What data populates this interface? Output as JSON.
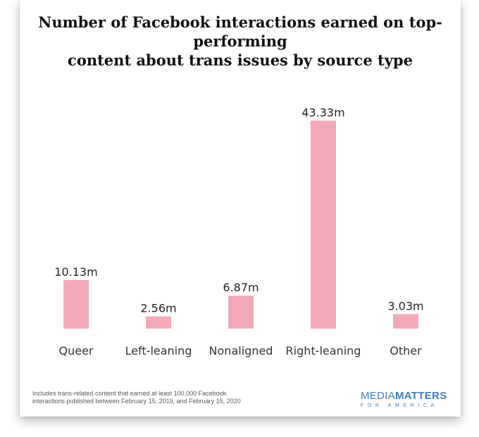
{
  "chart_data": {
    "type": "bar",
    "title_lines": [
      "Number of Facebook interactions earned on top-performing",
      "content about trans issues by source type"
    ],
    "categories": [
      "Queer",
      "Left-leaning",
      "Nonaligned",
      "Right-leaning",
      "Other"
    ],
    "values": [
      10.13,
      2.56,
      6.87,
      43.33,
      3.03
    ],
    "value_labels": [
      "10.13m",
      "2.56m",
      "6.87m",
      "43.33m",
      "3.03m"
    ],
    "unit": "m",
    "bar_color": "#f4a9b9",
    "ylim": [
      0,
      45
    ],
    "grid": false,
    "legend": "none"
  },
  "footnote_lines": [
    "Includes trans-related content that earned at least 100,000 Facebook",
    "interactions published between February 15, 2019, and February 15, 2020"
  ],
  "logo": {
    "word1": "MEDIA",
    "word2": "MATTERS",
    "sub": "FOR AMERICA",
    "color": "#3d7fc1"
  }
}
